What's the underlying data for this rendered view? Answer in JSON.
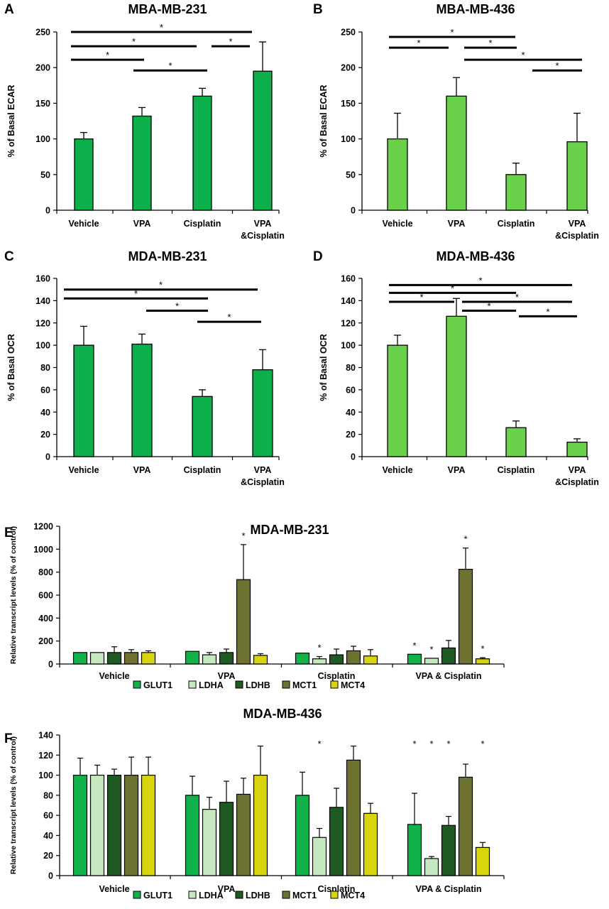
{
  "colors": {
    "dark_green": "#0cb04a",
    "light_green": "#6ad14a",
    "GLUT1": "#12b24a",
    "LDHA": "#c6e8c0",
    "LDHB": "#1e5a22",
    "MCT1": "#6e7230",
    "MCT4": "#d8d40e"
  },
  "chart_data": [
    {
      "id": "A",
      "panel_label": "A",
      "type": "bar",
      "title": "MBA-MB-231",
      "ylabel": "% of Basal ECAR",
      "ylim": [
        0,
        250
      ],
      "yticks": [
        0,
        50,
        100,
        150,
        200,
        250
      ],
      "categories": [
        "Vehicle",
        "VPA",
        "Cisplatin",
        "VPA\n&Cisplatin"
      ],
      "values": [
        100,
        132,
        160,
        195
      ],
      "errors": [
        9,
        12,
        11,
        41
      ],
      "color_key": "dark_green",
      "significance": [
        {
          "from": 0,
          "to": 3,
          "label": "*",
          "level": 250
        },
        {
          "from": 0,
          "to": 2,
          "label": "*",
          "level": 230
        },
        {
          "from": 3,
          "to": 3,
          "label": "*",
          "level": 230,
          "short": true
        },
        {
          "from": 0,
          "to": 1,
          "label": "*",
          "level": 211
        },
        {
          "from": 1,
          "to": 2,
          "label": "*",
          "level": 196
        }
      ]
    },
    {
      "id": "B",
      "panel_label": "B",
      "type": "bar",
      "title": "MBA-MB-436",
      "ylabel": "% of Basal ECAR",
      "ylim": [
        0,
        250
      ],
      "yticks": [
        0,
        50,
        100,
        150,
        200,
        250
      ],
      "categories": [
        "Vehicle",
        "VPA",
        "Cisplatin",
        "VPA\n&Cisplatin"
      ],
      "values": [
        100,
        160,
        50,
        96
      ],
      "errors": [
        36,
        26,
        16,
        40
      ],
      "color_key": "light_green",
      "significance": [
        {
          "from": 0,
          "to": 2,
          "label": "*",
          "level": 243
        },
        {
          "from": 0,
          "to": 1,
          "label": "*",
          "level": 228
        },
        {
          "from": 1,
          "to": 2,
          "label": "*",
          "level": 228
        },
        {
          "from": 1,
          "to": 3,
          "label": "*",
          "level": 211
        },
        {
          "from": 2,
          "to": 3,
          "label": "*",
          "level": 196
        }
      ]
    },
    {
      "id": "C",
      "panel_label": "C",
      "type": "bar",
      "title": "MDA-MB-231",
      "ylabel": "% of Basal OCR",
      "ylim": [
        0,
        160
      ],
      "yticks": [
        0,
        20,
        40,
        60,
        80,
        100,
        120,
        140,
        160
      ],
      "categories": [
        "Vehicle",
        "VPA",
        "Cisplatin",
        "VPA\n&Cisplatin"
      ],
      "values": [
        100,
        101,
        54,
        78
      ],
      "errors": [
        17,
        9,
        6,
        18
      ],
      "color_key": "dark_green",
      "significance": [
        {
          "from": 0,
          "to": 3,
          "label": "*",
          "level": 150
        },
        {
          "from": 0,
          "to": 2,
          "label": "*",
          "level": 142
        },
        {
          "from": 1,
          "to": 2,
          "label": "*",
          "level": 131
        },
        {
          "from": 2,
          "to": 3,
          "label": "*",
          "level": 121
        }
      ]
    },
    {
      "id": "D",
      "panel_label": "D",
      "type": "bar",
      "title": "MDA-MB-436",
      "ylabel": "% of Basal OCR",
      "ylim": [
        0,
        160
      ],
      "yticks": [
        0,
        20,
        40,
        60,
        80,
        100,
        120,
        140,
        160
      ],
      "categories": [
        "Vehicle",
        "VPA",
        "Cisplatin",
        "VPA\n&Cisplatin"
      ],
      "values": [
        100,
        126,
        26,
        13
      ],
      "errors": [
        9,
        16,
        6,
        3
      ],
      "color_key": "light_green",
      "significance": [
        {
          "from": 0,
          "to": 3,
          "label": "*",
          "level": 154
        },
        {
          "from": 0,
          "to": 2,
          "label": "*",
          "level": 147
        },
        {
          "from": 0,
          "to": 1,
          "label": "*",
          "level": 139
        },
        {
          "from": 1,
          "to": 3,
          "label": "*",
          "level": 139
        },
        {
          "from": 1,
          "to": 2,
          "label": "*",
          "level": 131
        },
        {
          "from": 2,
          "to": 3,
          "label": "*",
          "level": 126
        }
      ]
    },
    {
      "id": "E",
      "panel_label": "E",
      "type": "bar",
      "title": "MDA-MB-231",
      "ylabel": "Relative transcript levels (% of control)",
      "ylim": [
        0,
        1200
      ],
      "yticks": [
        0,
        200,
        400,
        600,
        800,
        1000,
        1200
      ],
      "categories": [
        "Vehicle",
        "VPA",
        "Cisplatin",
        "VPA & Cisplatin"
      ],
      "series": [
        {
          "name": "GLUT1",
          "values": [
            100,
            110,
            95,
            85
          ],
          "errors": [
            0,
            0,
            0,
            0
          ],
          "stars": [
            false,
            false,
            false,
            true
          ]
        },
        {
          "name": "LDHA",
          "values": [
            100,
            80,
            45,
            50
          ],
          "errors": [
            0,
            20,
            20,
            0
          ],
          "stars": [
            false,
            false,
            true,
            true
          ]
        },
        {
          "name": "LDHB",
          "values": [
            100,
            100,
            80,
            140
          ],
          "errors": [
            50,
            30,
            50,
            65
          ],
          "stars": [
            false,
            false,
            false,
            false
          ]
        },
        {
          "name": "MCT1",
          "values": [
            100,
            735,
            115,
            825
          ],
          "errors": [
            25,
            305,
            40,
            185
          ],
          "stars": [
            false,
            true,
            false,
            true
          ]
        },
        {
          "name": "MCT4",
          "values": [
            100,
            75,
            70,
            45
          ],
          "errors": [
            15,
            15,
            55,
            10
          ],
          "stars": [
            false,
            false,
            false,
            true
          ]
        }
      ],
      "legend_position": "bottom"
    },
    {
      "id": "F",
      "panel_label": "F",
      "type": "bar",
      "title": "MDA-MB-436",
      "ylabel": "Relative transcript levels (% of control)",
      "ylim": [
        0,
        140
      ],
      "yticks": [
        0,
        20,
        40,
        60,
        80,
        100,
        120,
        140
      ],
      "categories": [
        "Vehicle",
        "VPA",
        "Cisplatin",
        "VPA & Cisplatin"
      ],
      "series": [
        {
          "name": "GLUT1",
          "values": [
            100,
            80,
            80,
            51
          ],
          "errors": [
            17,
            19,
            23,
            31
          ],
          "stars": [
            false,
            false,
            false,
            true
          ]
        },
        {
          "name": "LDHA",
          "values": [
            100,
            66,
            38,
            17
          ],
          "errors": [
            10,
            12,
            9,
            2
          ],
          "stars": [
            false,
            false,
            true,
            true
          ]
        },
        {
          "name": "LDHB",
          "values": [
            100,
            73,
            68,
            50
          ],
          "errors": [
            6,
            21,
            19,
            9
          ],
          "stars": [
            false,
            false,
            false,
            true
          ]
        },
        {
          "name": "MCT1",
          "values": [
            100,
            81,
            115,
            98
          ],
          "errors": [
            18,
            16,
            14,
            13
          ],
          "stars": [
            false,
            false,
            false,
            false
          ]
        },
        {
          "name": "MCT4",
          "values": [
            100,
            100,
            62,
            28
          ],
          "errors": [
            18,
            29,
            10,
            5
          ],
          "stars": [
            false,
            false,
            false,
            true
          ]
        }
      ],
      "legend_position": "bottom"
    }
  ]
}
